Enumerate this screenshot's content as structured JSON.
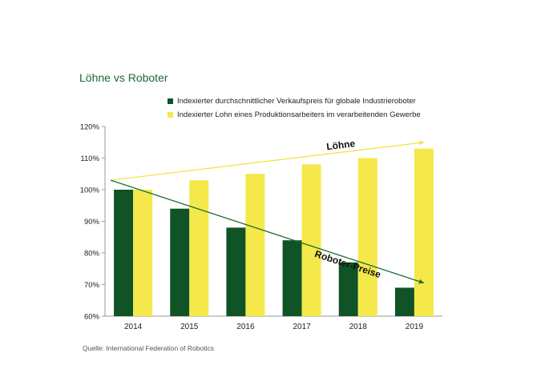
{
  "colors": {
    "robot": "#0f5326",
    "wage": "#f4e84a",
    "title": "#1d6a35",
    "axis": "#999999",
    "wage_arrow": "#f2e24a",
    "robot_arrow": "#1f6d33"
  },
  "source": "Quelle: International Federation of Robotics",
  "chart_data": {
    "type": "bar",
    "title": "Löhne vs Roboter",
    "categories": [
      "2014",
      "2015",
      "2016",
      "2017",
      "2018",
      "2019"
    ],
    "series": [
      {
        "name": "Indexierter durchschnittlicher Verkaufspreis für globale Industrieroboter",
        "values": [
          100,
          94,
          88,
          84,
          77,
          69
        ]
      },
      {
        "name": "Indexierter Lohn eines Produktionsarbeiters im verarbeitenden Gewerbe",
        "values": [
          100,
          103,
          105,
          108,
          110,
          113
        ]
      }
    ],
    "ylim": [
      60,
      120
    ],
    "yticks": [
      "60%",
      "70%",
      "80%",
      "90%",
      "100%",
      "110%",
      "120%"
    ],
    "ytick_values": [
      60,
      70,
      80,
      90,
      100,
      110,
      120
    ],
    "legend_position": "top",
    "grid": false,
    "annotations": [
      {
        "text": "Löhne",
        "series": 1,
        "from": [
          0,
          103
        ],
        "to": [
          5,
          115
        ]
      },
      {
        "text": "Roboter-Preise",
        "series": 0,
        "from": [
          0,
          103
        ],
        "to": [
          5,
          70.5
        ]
      }
    ]
  }
}
